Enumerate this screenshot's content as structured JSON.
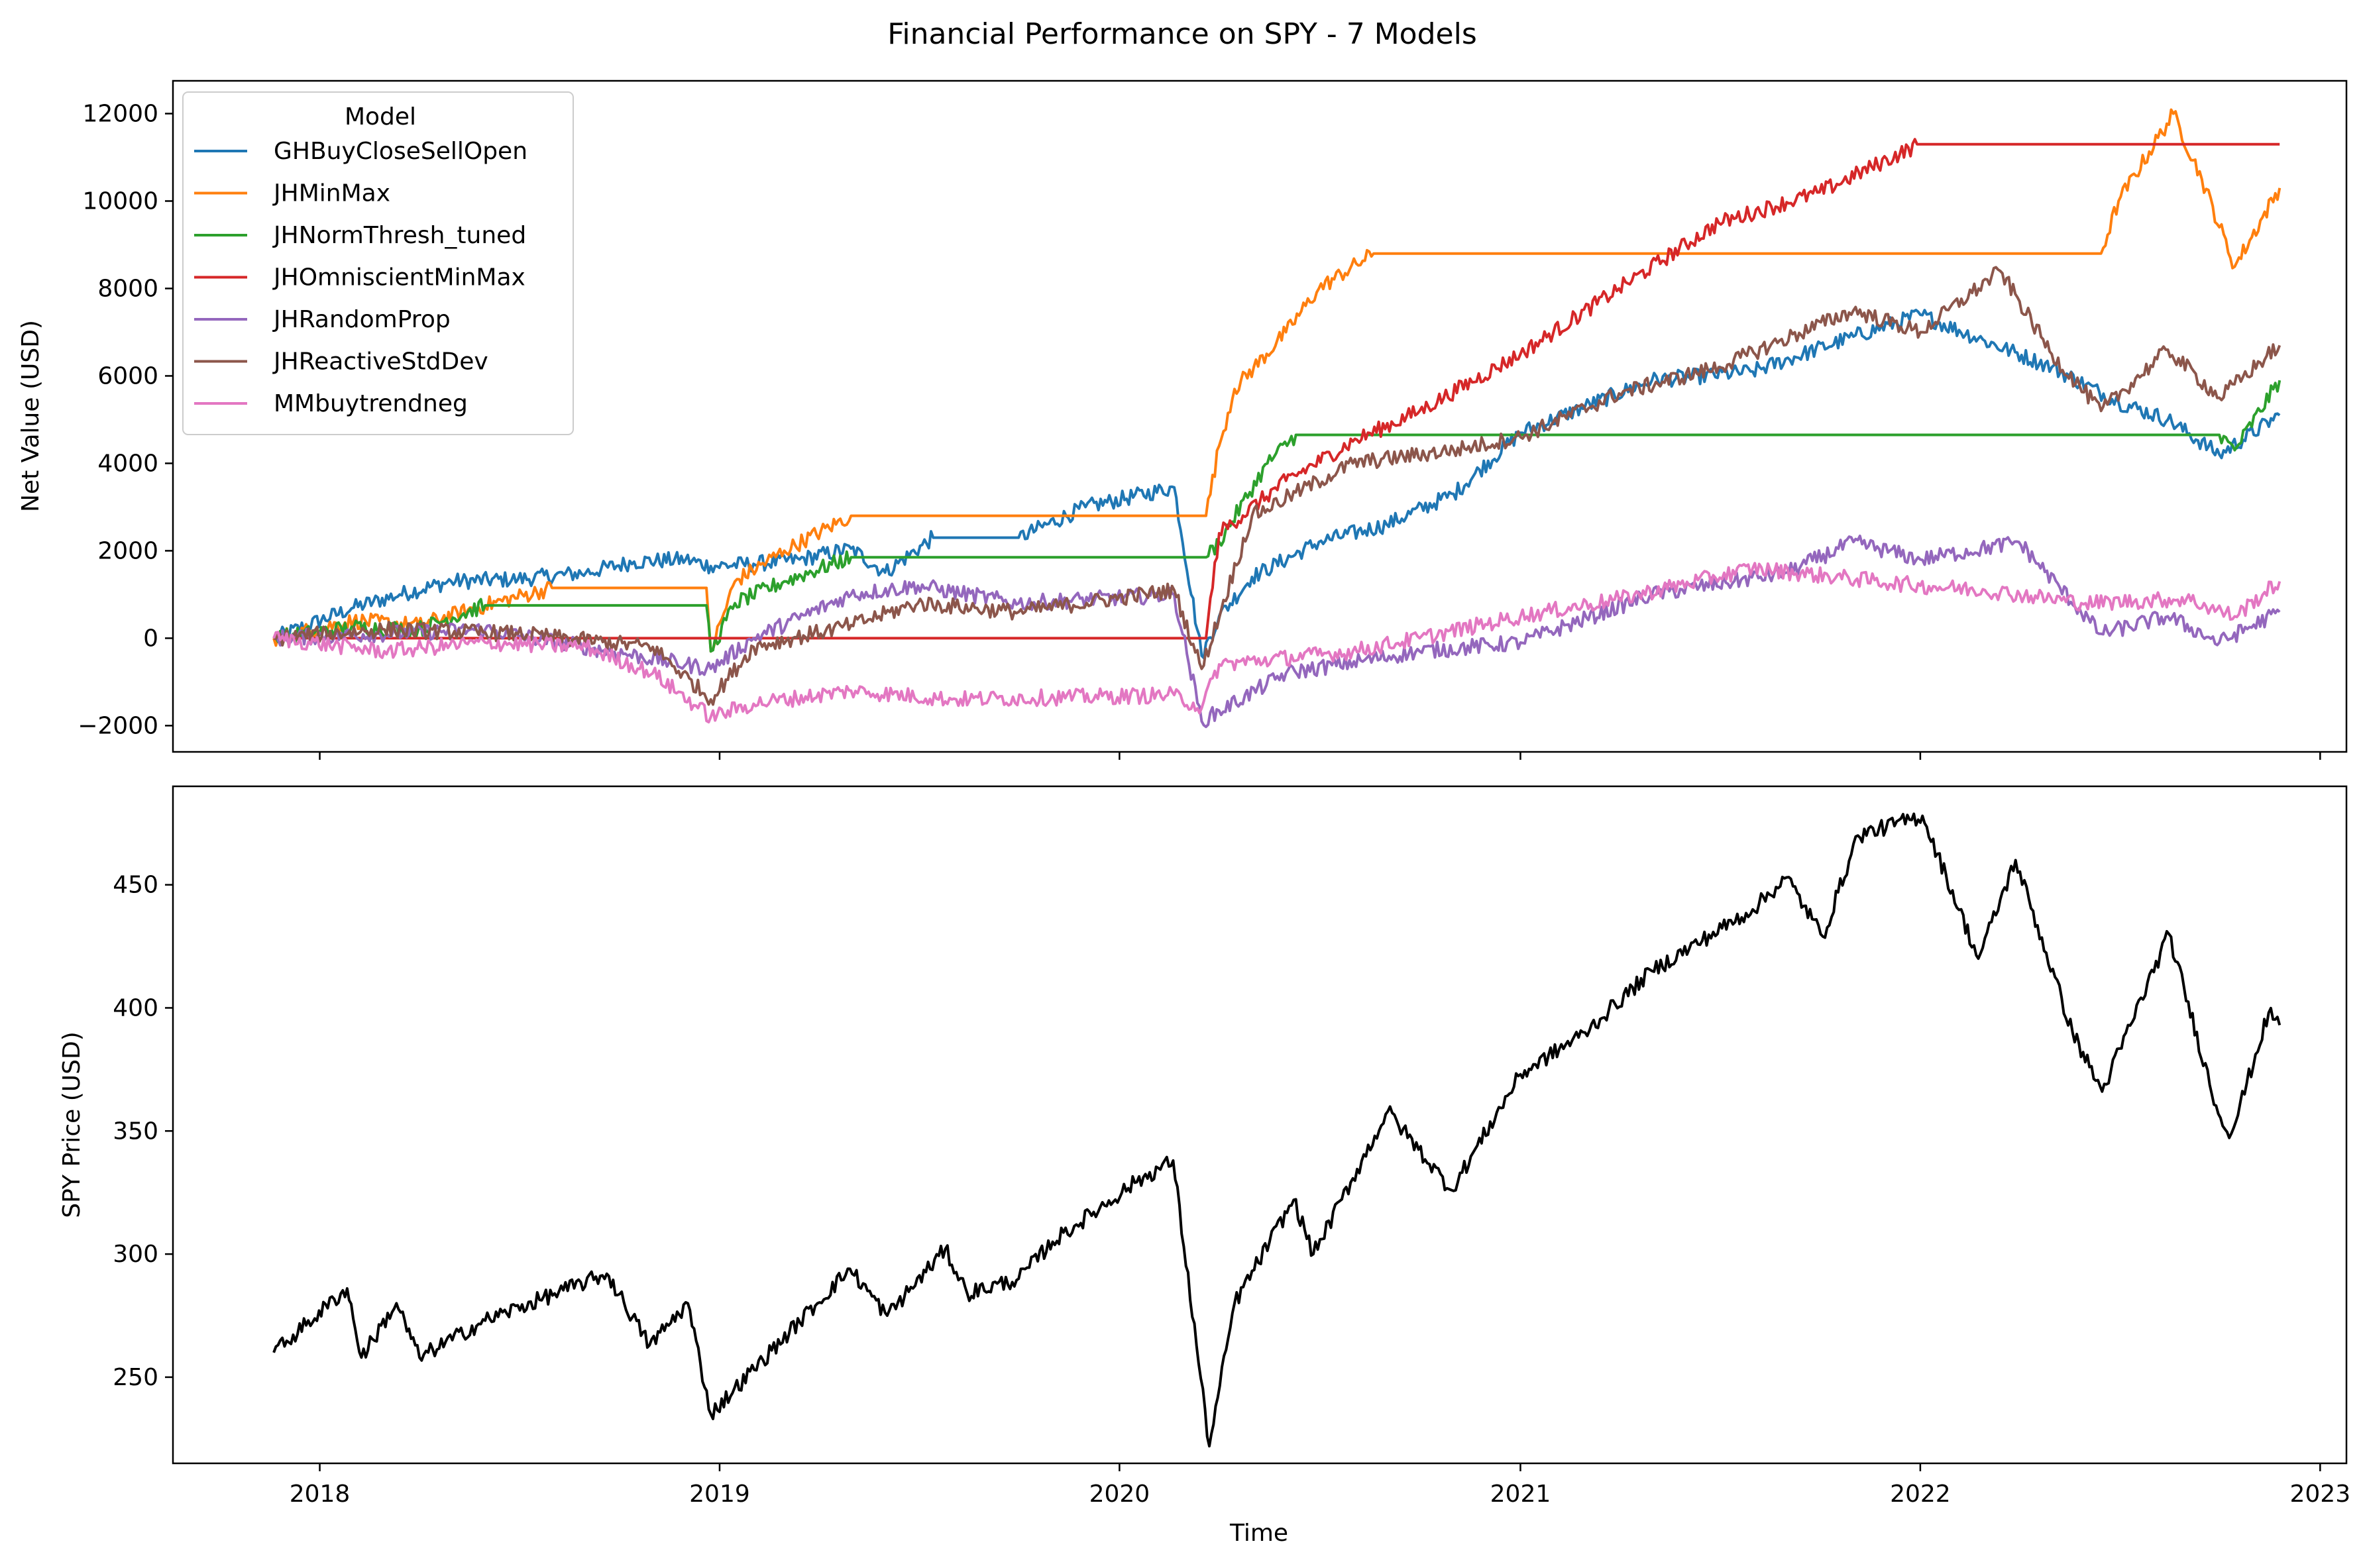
{
  "figure": {
    "title": "Financial Performance on SPY - 7 Models",
    "xlabel": "Time"
  },
  "chart_data": [
    {
      "type": "line",
      "ylabel": "Net Value (USD)",
      "xlim": [
        "2017-08-20",
        "2023-01-25"
      ],
      "ylim": [
        -2600,
        12750
      ],
      "x_ticks": [
        "2018",
        "2019",
        "2020",
        "2021",
        "2022",
        "2023"
      ],
      "y_ticks": [
        -2000,
        0,
        2000,
        4000,
        6000,
        8000,
        10000,
        12000
      ],
      "grid": false,
      "legend": {
        "title": "Model",
        "position": "upper-left"
      },
      "series": [
        {
          "name": "GHBuyCloseSellOpen",
          "color": "#1f77b4",
          "points": [
            [
              "2017-11-20",
              0
            ],
            [
              "2018-02-01",
              700
            ],
            [
              "2018-03-15",
              1000
            ],
            [
              "2018-05-01",
              1300
            ],
            [
              "2018-07-01",
              1350
            ],
            [
              "2018-09-01",
              1500
            ],
            [
              "2018-10-15",
              1750
            ],
            [
              "2018-12-01",
              1800
            ],
            [
              "2018-12-24",
              1650
            ],
            [
              "2019-02-01",
              1700
            ],
            [
              "2019-03-15",
              1800
            ],
            [
              "2019-05-01",
              2050
            ],
            [
              "2019-06-01",
              1500
            ],
            [
              "2019-07-15",
              2300
            ],
            [
              "2019-10-01",
              2300
            ],
            [
              "2019-12-01",
              3000
            ],
            [
              "2020-02-20",
              3450
            ],
            [
              "2020-03-16",
              -400
            ],
            [
              "2020-04-01",
              500
            ],
            [
              "2020-05-01",
              1400
            ],
            [
              "2020-07-01",
              2200
            ],
            [
              "2020-09-01",
              2600
            ],
            [
              "2020-11-01",
              3300
            ],
            [
              "2021-01-01",
              4700
            ],
            [
              "2021-03-01",
              5300
            ],
            [
              "2021-05-01",
              5900
            ],
            [
              "2021-08-01",
              6100
            ],
            [
              "2021-11-01",
              6900
            ],
            [
              "2022-01-01",
              7400
            ],
            [
              "2022-03-01",
              6800
            ],
            [
              "2022-05-01",
              6200
            ],
            [
              "2022-07-01",
              5400
            ],
            [
              "2022-08-15",
              5000
            ],
            [
              "2022-10-01",
              4200
            ],
            [
              "2022-11-25",
              5100
            ]
          ]
        },
        {
          "name": "JHMinMax",
          "color": "#ff7f0e",
          "points": [
            [
              "2017-11-20",
              0
            ],
            [
              "2018-02-01",
              400
            ],
            [
              "2018-04-01",
              300
            ],
            [
              "2018-06-01",
              750
            ],
            [
              "2018-08-01",
              1150
            ],
            [
              "2018-12-20",
              1150
            ],
            [
              "2018-12-24",
              -300
            ],
            [
              "2019-01-15",
              1300
            ],
            [
              "2019-03-01",
              2000
            ],
            [
              "2019-05-01",
              2800
            ],
            [
              "2020-03-20",
              2800
            ],
            [
              "2020-04-01",
              4400
            ],
            [
              "2020-04-15",
              5700
            ],
            [
              "2020-06-01",
              7000
            ],
            [
              "2020-07-01",
              8000
            ],
            [
              "2020-08-20",
              8800
            ],
            [
              "2022-06-15",
              8800
            ],
            [
              "2022-07-01",
              10000
            ],
            [
              "2022-08-20",
              12000
            ],
            [
              "2022-09-15",
              10500
            ],
            [
              "2022-10-15",
              8500
            ],
            [
              "2022-11-25",
              10300
            ]
          ]
        },
        {
          "name": "JHNormThresh_tuned",
          "color": "#2ca02c",
          "points": [
            [
              "2017-11-20",
              0
            ],
            [
              "2018-02-01",
              250
            ],
            [
              "2018-04-01",
              200
            ],
            [
              "2018-06-01",
              750
            ],
            [
              "2018-12-20",
              750
            ],
            [
              "2018-12-24",
              -300
            ],
            [
              "2019-01-15",
              800
            ],
            [
              "2019-03-01",
              1300
            ],
            [
              "2019-05-01",
              1850
            ],
            [
              "2020-03-20",
              1850
            ],
            [
              "2020-04-01",
              2200
            ],
            [
              "2020-05-15",
              4000
            ],
            [
              "2020-06-10",
              4650
            ],
            [
              "2022-10-01",
              4650
            ],
            [
              "2022-10-15",
              4300
            ],
            [
              "2022-11-25",
              5900
            ]
          ]
        },
        {
          "name": "JHOmniscientMinMax",
          "color": "#d62728",
          "points": [
            [
              "2017-11-20",
              0
            ],
            [
              "2020-03-20",
              0
            ],
            [
              "2020-04-01",
              2400
            ],
            [
              "2020-06-01",
              3600
            ],
            [
              "2020-08-01",
              4500
            ],
            [
              "2020-10-01",
              5200
            ],
            [
              "2021-01-01",
              6500
            ],
            [
              "2021-04-01",
              8000
            ],
            [
              "2021-07-01",
              9500
            ],
            [
              "2021-10-01",
              10200
            ],
            [
              "2021-12-31",
              11300
            ],
            [
              "2022-11-25",
              11300
            ]
          ]
        },
        {
          "name": "JHRandomProp",
          "color": "#9467bd",
          "points": [
            [
              "2017-11-20",
              0
            ],
            [
              "2018-06-01",
              200
            ],
            [
              "2018-12-24",
              -700
            ],
            [
              "2019-02-01",
              0
            ],
            [
              "2019-05-01",
              1000
            ],
            [
              "2019-07-01",
              1200
            ],
            [
              "2019-10-01",
              800
            ],
            [
              "2020-02-20",
              1000
            ],
            [
              "2020-03-16",
              -1900
            ],
            [
              "2020-06-01",
              -800
            ],
            [
              "2020-10-01",
              -300
            ],
            [
              "2021-01-01",
              -100
            ],
            [
              "2021-05-01",
              1000
            ],
            [
              "2021-09-01",
              1500
            ],
            [
              "2021-11-01",
              2200
            ],
            [
              "2022-01-01",
              1800
            ],
            [
              "2022-04-01",
              2200
            ],
            [
              "2022-06-15",
              100
            ],
            [
              "2022-08-15",
              500
            ],
            [
              "2022-10-01",
              -100
            ],
            [
              "2022-11-25",
              600
            ]
          ]
        },
        {
          "name": "JHReactiveStdDev",
          "color": "#8c564b",
          "points": [
            [
              "2017-11-20",
              0
            ],
            [
              "2018-03-01",
              200
            ],
            [
              "2018-07-01",
              100
            ],
            [
              "2018-11-01",
              -200
            ],
            [
              "2018-12-24",
              -1400
            ],
            [
              "2019-02-01",
              -200
            ],
            [
              "2019-05-01",
              300
            ],
            [
              "2019-07-01",
              800
            ],
            [
              "2019-10-01",
              600
            ],
            [
              "2020-02-20",
              1100
            ],
            [
              "2020-03-16",
              -700
            ],
            [
              "2020-05-01",
              2800
            ],
            [
              "2020-08-01",
              4000
            ],
            [
              "2020-11-01",
              4300
            ],
            [
              "2021-01-01",
              4600
            ],
            [
              "2021-04-01",
              5600
            ],
            [
              "2021-07-01",
              6200
            ],
            [
              "2021-11-01",
              7500
            ],
            [
              "2022-01-01",
              7000
            ],
            [
              "2022-03-15",
              8400
            ],
            [
              "2022-05-01",
              6500
            ],
            [
              "2022-06-15",
              5200
            ],
            [
              "2022-08-15",
              6600
            ],
            [
              "2022-10-01",
              5500
            ],
            [
              "2022-11-25",
              6700
            ]
          ]
        },
        {
          "name": "MMbuytrendneg",
          "color": "#e377c2",
          "points": [
            [
              "2017-11-20",
              0
            ],
            [
              "2018-03-01",
              -300
            ],
            [
              "2018-06-01",
              -100
            ],
            [
              "2018-09-01",
              -200
            ],
            [
              "2018-11-01",
              -800
            ],
            [
              "2018-12-24",
              -1800
            ],
            [
              "2019-02-01",
              -1500
            ],
            [
              "2019-05-01",
              -1200
            ],
            [
              "2019-08-01",
              -1400
            ],
            [
              "2020-02-20",
              -1300
            ],
            [
              "2020-03-16",
              -1600
            ],
            [
              "2020-04-01",
              -600
            ],
            [
              "2020-08-01",
              -300
            ],
            [
              "2020-10-01",
              0
            ],
            [
              "2021-01-01",
              500
            ],
            [
              "2021-04-01",
              900
            ],
            [
              "2021-08-01",
              1600
            ],
            [
              "2022-01-01",
              1200
            ],
            [
              "2022-03-01",
              1100
            ],
            [
              "2022-06-01",
              800
            ],
            [
              "2022-09-01",
              900
            ],
            [
              "2022-10-15",
              500
            ],
            [
              "2022-11-25",
              1300
            ]
          ]
        }
      ]
    },
    {
      "type": "line",
      "ylabel": "SPY Price (USD)",
      "xlim": [
        "2017-08-20",
        "2023-01-25"
      ],
      "ylim": [
        215,
        490
      ],
      "x_ticks": [
        "2018",
        "2019",
        "2020",
        "2021",
        "2022",
        "2023"
      ],
      "y_ticks": [
        250,
        300,
        350,
        400,
        450
      ],
      "grid": false,
      "series": [
        {
          "color": "#000000",
          "points": [
            [
              "2017-11-20",
              260
            ],
            [
              "2018-01-26",
              286
            ],
            [
              "2018-02-08",
              258
            ],
            [
              "2018-03-12",
              280
            ],
            [
              "2018-04-02",
              258
            ],
            [
              "2018-06-01",
              273
            ],
            [
              "2018-09-20",
              292
            ],
            [
              "2018-10-29",
              263
            ],
            [
              "2018-12-03",
              280
            ],
            [
              "2018-12-24",
              235
            ],
            [
              "2019-04-30",
              294
            ],
            [
              "2019-06-03",
              275
            ],
            [
              "2019-07-26",
              302
            ],
            [
              "2019-08-15",
              284
            ],
            [
              "2019-10-01",
              290
            ],
            [
              "2019-11-01",
              305
            ],
            [
              "2020-01-15",
              329
            ],
            [
              "2020-02-19",
              338
            ],
            [
              "2020-03-23",
              222
            ],
            [
              "2020-04-15",
              280
            ],
            [
              "2020-06-08",
              322
            ],
            [
              "2020-06-26",
              300
            ],
            [
              "2020-09-02",
              358
            ],
            [
              "2020-10-30",
              326
            ],
            [
              "2021-01-01",
              373
            ],
            [
              "2021-03-01",
              390
            ],
            [
              "2021-05-01",
              415
            ],
            [
              "2021-08-01",
              440
            ],
            [
              "2021-09-01",
              453
            ],
            [
              "2021-10-04",
              429
            ],
            [
              "2021-11-05",
              470
            ],
            [
              "2022-01-03",
              478
            ],
            [
              "2022-02-23",
              420
            ],
            [
              "2022-03-29",
              460
            ],
            [
              "2022-05-20",
              390
            ],
            [
              "2022-06-16",
              366
            ],
            [
              "2022-08-16",
              430
            ],
            [
              "2022-09-30",
              357
            ],
            [
              "2022-10-12",
              349
            ],
            [
              "2022-11-15",
              398
            ],
            [
              "2022-11-25",
              393
            ]
          ]
        }
      ]
    }
  ]
}
